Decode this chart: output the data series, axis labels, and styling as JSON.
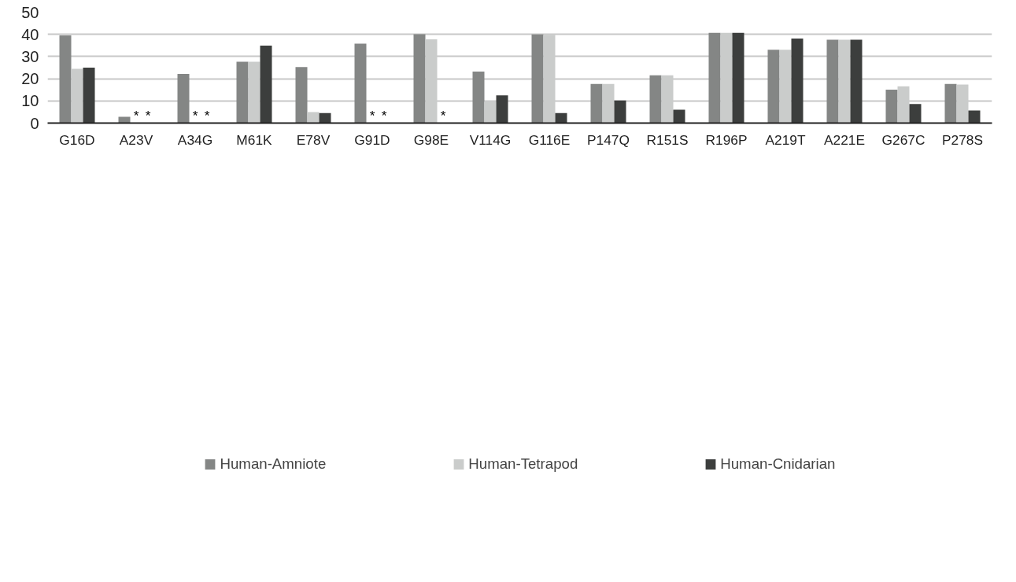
{
  "chart_data": {
    "type": "bar",
    "categories": [
      "G16D",
      "A23V",
      "A34G",
      "M61K",
      "E78V",
      "G91D",
      "G98E",
      "V114G",
      "G116E",
      "P147Q",
      "R151S",
      "R196P",
      "A219T",
      "A221E",
      "G267C",
      "P278S"
    ],
    "series": [
      {
        "name": "Human-Amniote",
        "color": "#848685",
        "values": [
          39.5,
          2.8,
          22.2,
          27.7,
          25.3,
          35.8,
          40.1,
          23.2,
          40.0,
          17.6,
          21.5,
          40.7,
          33.1,
          37.6,
          15.1,
          17.6
        ]
      },
      {
        "name": "Human-Tetrapod",
        "color": "#cacccb",
        "values": [
          24.5,
          null,
          null,
          27.7,
          5.0,
          null,
          37.8,
          9.8,
          39.8,
          17.6,
          21.5,
          40.7,
          33.1,
          37.6,
          16.6,
          17.4
        ],
        "value_labels": [
          null,
          "*",
          "*",
          null,
          null,
          "*",
          null,
          null,
          null,
          null,
          null,
          null,
          null,
          null,
          null,
          null
        ]
      },
      {
        "name": "Human-Cnidarian",
        "color": "#3c3e3d",
        "values": [
          25.0,
          null,
          null,
          34.9,
          4.5,
          null,
          null,
          12.5,
          4.5,
          10.2,
          6.0,
          40.7,
          38.1,
          37.6,
          8.6,
          5.7
        ],
        "value_labels": [
          null,
          "*",
          "*",
          null,
          null,
          "*",
          "*",
          null,
          null,
          null,
          null,
          null,
          null,
          null,
          null,
          null
        ]
      }
    ],
    "ylim": [
      0,
      50
    ],
    "yticks": [
      0,
      10,
      20,
      30,
      40,
      50
    ],
    "grid": "y",
    "legend": "bottom"
  }
}
